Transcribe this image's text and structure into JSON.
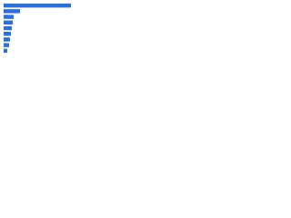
{
  "chart_data": {
    "type": "bar",
    "orientation": "horizontal",
    "categories": [
      null,
      null,
      null,
      null,
      null,
      null,
      null,
      null,
      null
    ],
    "values": [
      74,
      18,
      11,
      10,
      9,
      8,
      7,
      6,
      4
    ],
    "color": "#2f6ed3"
  }
}
